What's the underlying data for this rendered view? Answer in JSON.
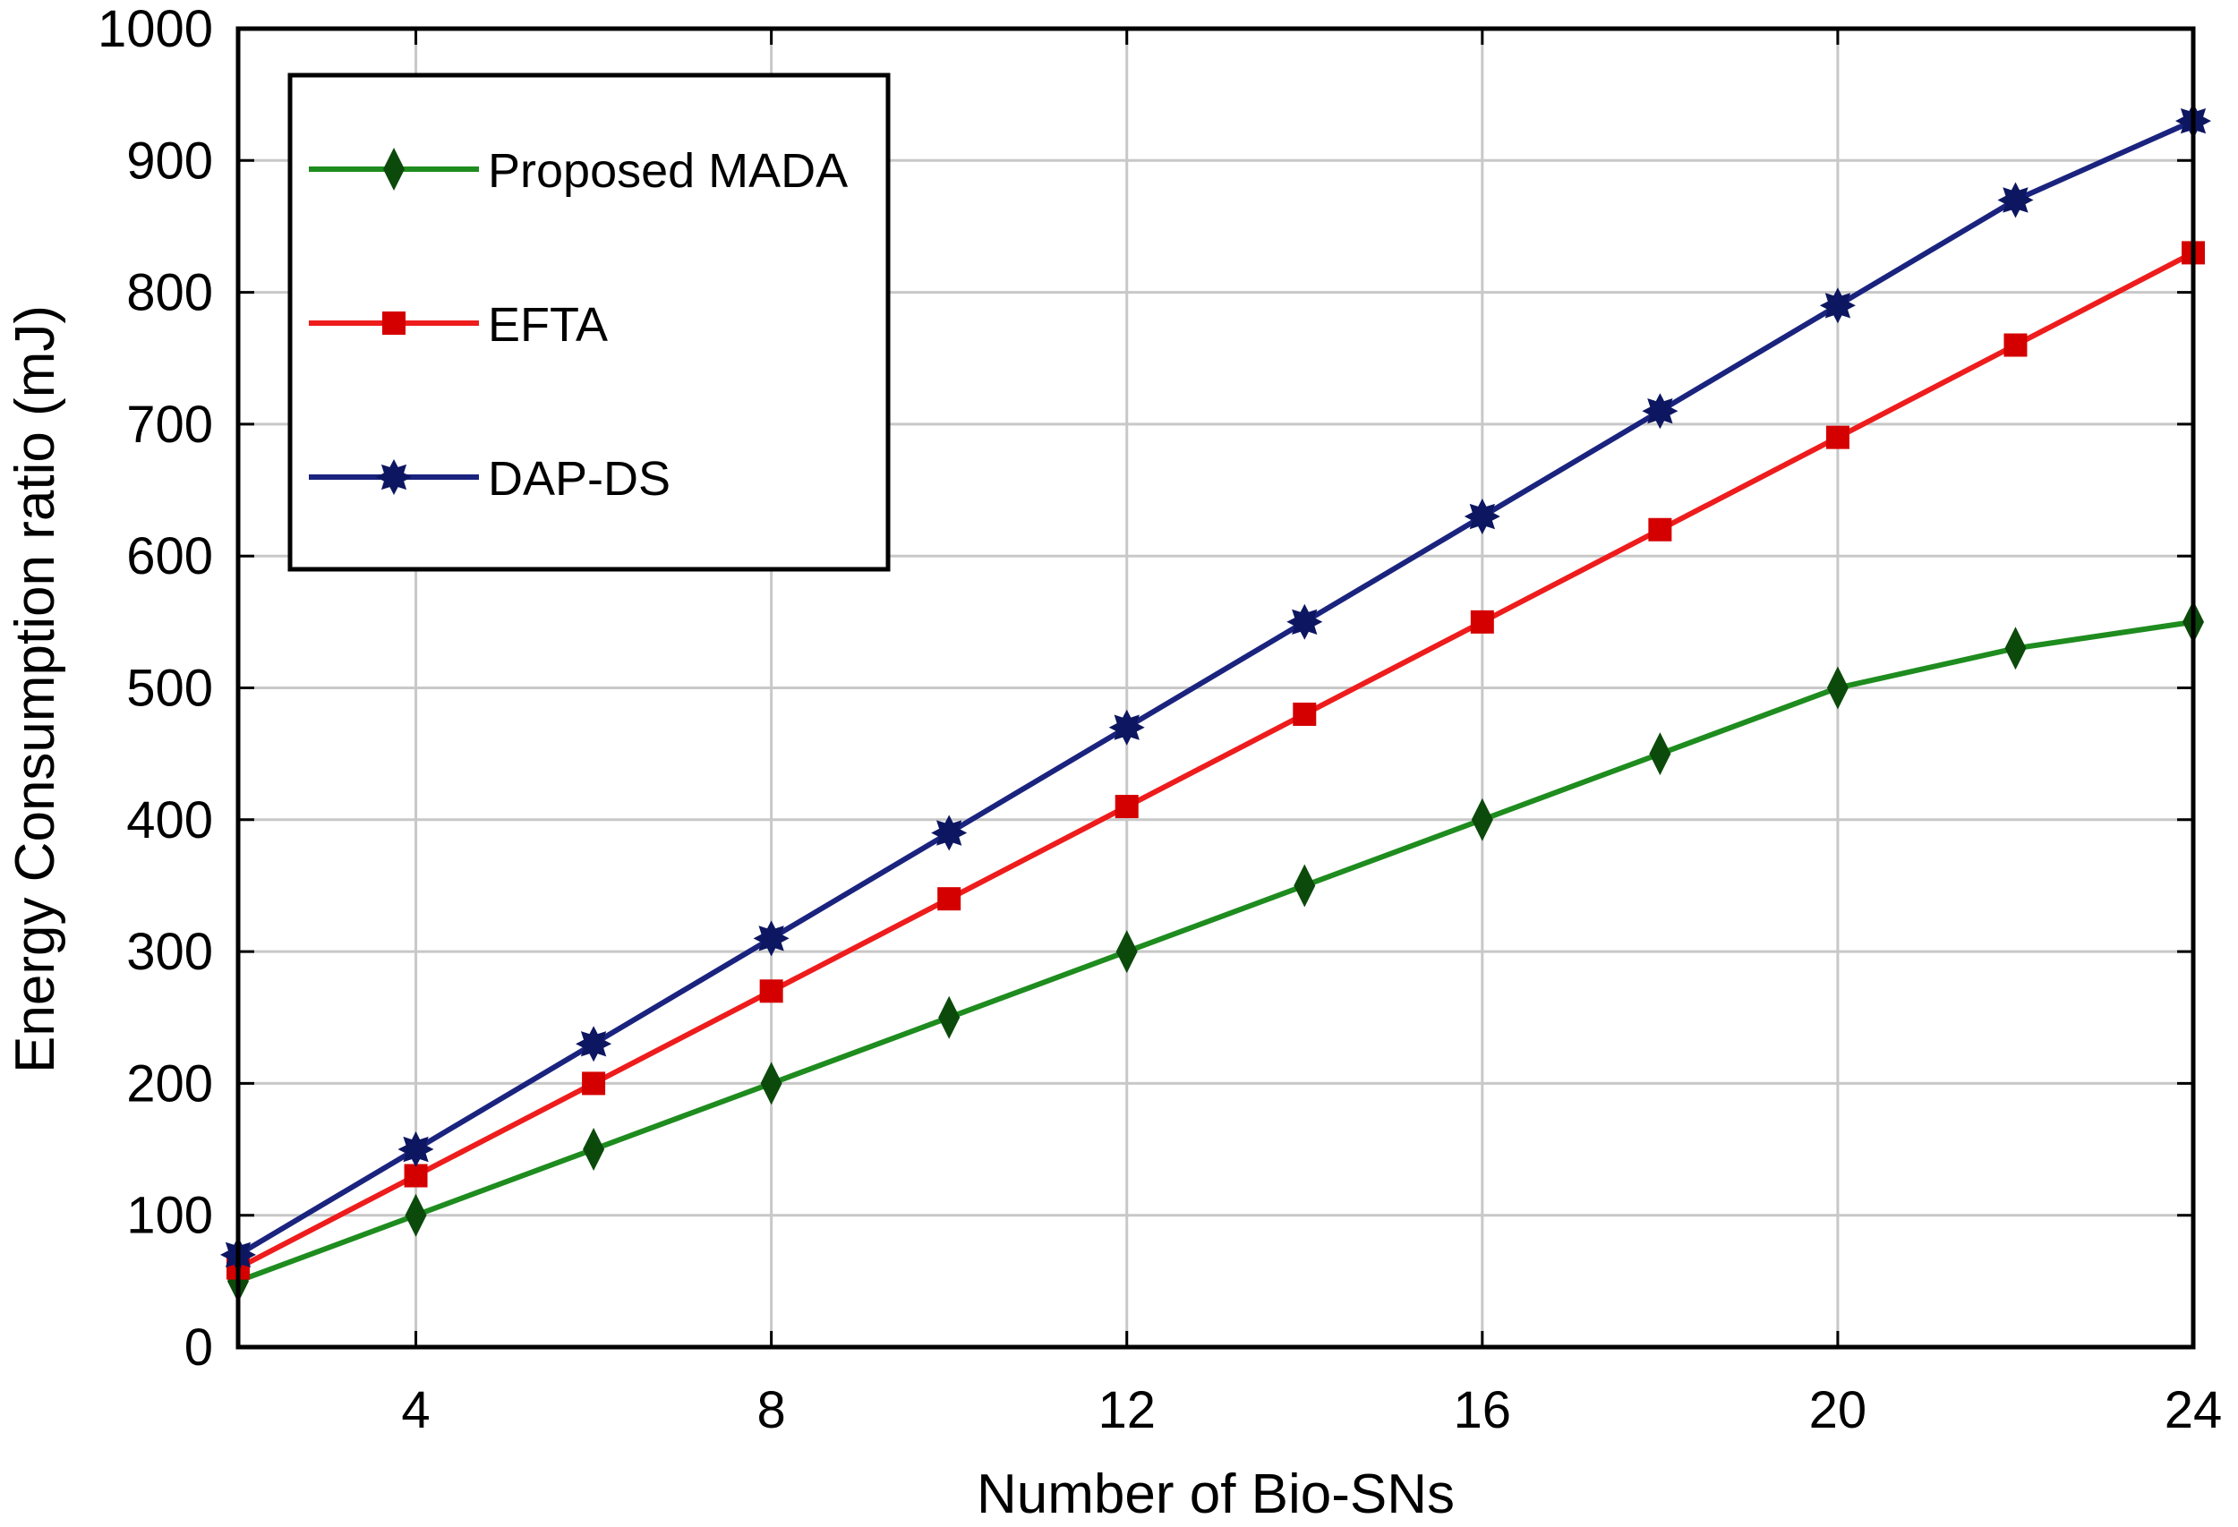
{
  "chart_data": {
    "type": "line",
    "title": "",
    "xlabel": "Number of Bio-SNs",
    "ylabel": "Energy Consumption ratio (mJ)",
    "xlim": [
      2,
      24
    ],
    "ylim": [
      0,
      1000
    ],
    "grid": true,
    "legend_position": "top-left",
    "x": [
      2,
      4,
      6,
      8,
      10,
      12,
      14,
      16,
      18,
      20,
      22,
      24
    ],
    "x_ticks": [
      4,
      8,
      12,
      16,
      20,
      24
    ],
    "x_tick_labels": [
      "4",
      "8",
      "12",
      "16",
      "20",
      "24"
    ],
    "y_ticks": [
      0,
      100,
      200,
      300,
      400,
      500,
      600,
      700,
      800,
      900,
      1000
    ],
    "y_tick_labels": [
      "0",
      "100",
      "200",
      "300",
      "400",
      "500",
      "600",
      "700",
      "800",
      "900",
      "1000"
    ],
    "series": [
      {
        "name": "Proposed MADA",
        "color": "#1e8c1e",
        "marker_color": "#0b4a0b",
        "marker": "diamond",
        "values": [
          50,
          100,
          150,
          200,
          250,
          300,
          350,
          400,
          450,
          500,
          530,
          550
        ]
      },
      {
        "name": "EFTA",
        "color": "#ee1c1c",
        "marker_color": "#d40000",
        "marker": "square",
        "values": [
          60,
          130,
          200,
          270,
          340,
          410,
          480,
          550,
          620,
          690,
          760,
          830
        ]
      },
      {
        "name": "DAP-DS",
        "color": "#1a237e",
        "marker_color": "#0d1660",
        "marker": "star",
        "values": [
          70,
          150,
          230,
          310,
          390,
          470,
          550,
          630,
          710,
          790,
          870,
          930
        ]
      }
    ]
  }
}
